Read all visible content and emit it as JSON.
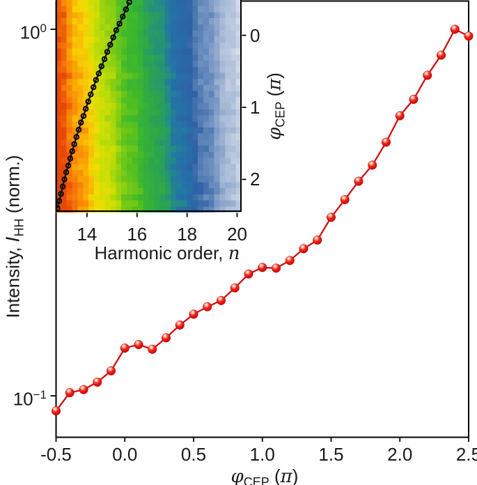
{
  "figure": {
    "name": "High-harmonic intensity vs carrier-envelope phase with harmonic-spectrum inset",
    "background": "#ffffff",
    "text_color": "#1a1a1a",
    "frame_color": "#000000"
  },
  "chart_data": [
    {
      "type": "line",
      "name": "main-cep-scan",
      "yscale": "log",
      "xlim": [
        -0.5,
        2.5
      ],
      "ylim": [
        0.0771,
        1.194
      ],
      "x": [
        -0.5,
        -0.4,
        -0.3,
        -0.2,
        -0.1,
        0.0,
        0.1,
        0.2,
        0.3,
        0.4,
        0.5,
        0.6,
        0.7,
        0.8,
        0.9,
        1.0,
        1.1,
        1.2,
        1.3,
        1.4,
        1.5,
        1.6,
        1.7,
        1.8,
        1.9,
        2.0,
        2.1,
        2.2,
        2.3,
        2.4,
        2.5
      ],
      "values": [
        0.091,
        0.102,
        0.104,
        0.109,
        0.117,
        0.135,
        0.138,
        0.134,
        0.144,
        0.156,
        0.167,
        0.175,
        0.182,
        0.197,
        0.215,
        0.224,
        0.223,
        0.234,
        0.252,
        0.266,
        0.307,
        0.343,
        0.385,
        0.426,
        0.492,
        0.581,
        0.644,
        0.749,
        0.85,
        1.0,
        0.958
      ],
      "line_color": "#cd1010",
      "marker": "glossy-sphere",
      "marker_color": "#e01414",
      "x_ticks": {
        "positions": [
          -0.5,
          0.0,
          0.5,
          1.0,
          1.5,
          2.0,
          2.5
        ],
        "labels": [
          "-0.5",
          "0.0",
          "0.5",
          "1.0",
          "1.5",
          "2.0",
          "2.5"
        ]
      },
      "y_ticks": [
        {
          "value": 0.1,
          "base": "10",
          "exponent": "−1"
        },
        {
          "value": 1.0,
          "base": "10",
          "exponent": "0"
        }
      ],
      "xlabel_parts": {
        "symbol": "φ",
        "subscript": "CEP",
        "open": " (",
        "pi": "π",
        "close": ")"
      },
      "ylabel_parts": {
        "prefix": "Intensity, ",
        "symbol": "I",
        "subscript": "HH",
        "suffix": " (norm.)"
      }
    },
    {
      "type": "heatmap",
      "name": "inset-harmonic-spectra-vs-cep",
      "xlim": [
        12.75,
        20.18
      ],
      "ylim": [
        -0.49,
        2.46
      ],
      "y_axis_side": "right",
      "x_ticks": {
        "positions": [
          14,
          16,
          18,
          20
        ],
        "labels": [
          "14",
          "16",
          "18",
          "20"
        ]
      },
      "y_ticks": {
        "positions": [
          0,
          1,
          2
        ],
        "labels": [
          "0",
          "1",
          "2"
        ]
      },
      "xlabel_parts": {
        "prefix": "Harmonic order, ",
        "symbol": "n"
      },
      "ylabel_parts": {
        "symbol": "φ",
        "subscript": "CEP",
        "open": " (",
        "pi": "π",
        "close": ")"
      },
      "colormap": {
        "stops": [
          [
            0.0,
            "#e84806"
          ],
          [
            0.05,
            "#f87d06"
          ],
          [
            0.11,
            "#fbb304"
          ],
          [
            0.16,
            "#f2dc04"
          ],
          [
            0.22,
            "#c6de06"
          ],
          [
            0.3,
            "#7ccb14"
          ],
          [
            0.38,
            "#3eb92a"
          ],
          [
            0.47,
            "#2ca74a"
          ],
          [
            0.54,
            "#23907e"
          ],
          [
            0.6,
            "#2373a8"
          ],
          [
            0.68,
            "#2e61a5"
          ],
          [
            0.76,
            "#6489bb"
          ],
          [
            0.84,
            "#98aed0"
          ],
          [
            0.92,
            "#c3cfe2"
          ],
          [
            1.0,
            "#edf1f7"
          ]
        ]
      },
      "bands": {
        "rows": 35,
        "cols": 34,
        "origin_n": 12.63,
        "drift_per_pi": 0.2,
        "span": 7.9,
        "row_jitter": 0.14,
        "cell_noise": 0.02,
        "harmonic_ripple": 0.012,
        "corner_whitening": 0.06,
        "seed": 11
      },
      "cutoff_line": {
        "marker": "open-circle",
        "color": "#0a0a0a",
        "points": [
          [
            -0.46,
            15.69
          ],
          [
            -0.36,
            15.56
          ],
          [
            -0.26,
            15.43
          ],
          [
            -0.16,
            15.3
          ],
          [
            -0.07,
            15.17
          ],
          [
            0.03,
            15.05
          ],
          [
            0.13,
            14.93
          ],
          [
            0.23,
            14.81
          ],
          [
            0.33,
            14.7
          ],
          [
            0.43,
            14.58
          ],
          [
            0.53,
            14.47
          ],
          [
            0.62,
            14.36
          ],
          [
            0.72,
            14.26
          ],
          [
            0.82,
            14.15
          ],
          [
            0.92,
            14.05
          ],
          [
            1.02,
            13.95
          ],
          [
            1.12,
            13.86
          ],
          [
            1.21,
            13.76
          ],
          [
            1.31,
            13.67
          ],
          [
            1.41,
            13.58
          ],
          [
            1.51,
            13.49
          ],
          [
            1.61,
            13.41
          ],
          [
            1.71,
            13.33
          ],
          [
            1.81,
            13.25
          ],
          [
            1.9,
            13.17
          ],
          [
            2.0,
            13.1
          ],
          [
            2.1,
            13.03
          ],
          [
            2.2,
            12.96
          ],
          [
            2.3,
            12.89
          ],
          [
            2.4,
            12.82
          ]
        ]
      }
    }
  ]
}
